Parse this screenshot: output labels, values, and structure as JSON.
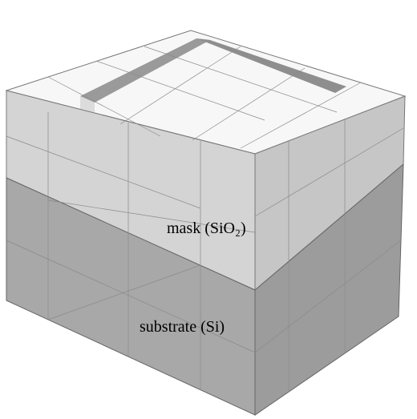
{
  "labels": {
    "mask": "mask (SiO₂)",
    "substrate": "substrate (Si)"
  }
}
